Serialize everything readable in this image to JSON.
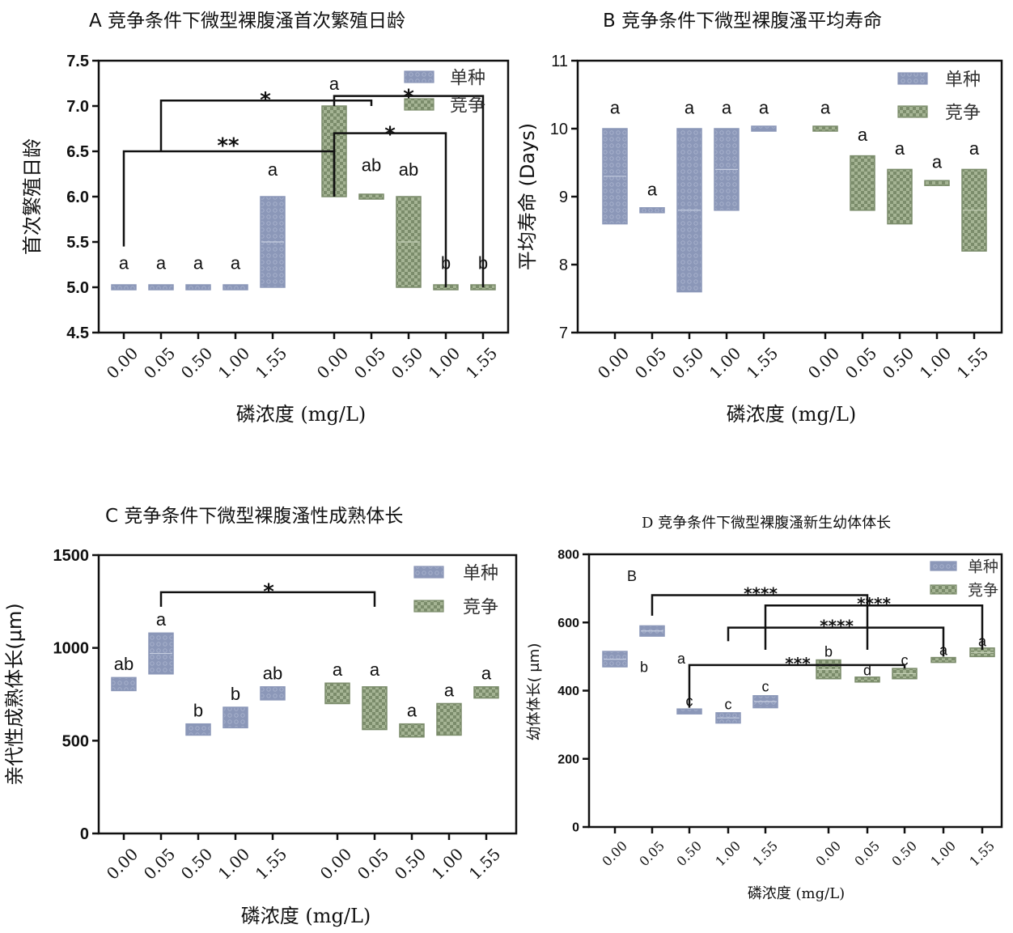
{
  "colors": {
    "mono_fill": "#8b97b8",
    "mono_pattern": "#a7b1cc",
    "comp_fill": "#7b8c6b",
    "comp_pattern": "#a5b494",
    "axis": "#111111"
  },
  "legend": {
    "mono": "单种",
    "comp": "竞争"
  },
  "chart_data": [
    {
      "type": "bar",
      "panel": "A",
      "title": "A 竞争条件下微型裸腹溞首次繁殖日龄",
      "xlabel": "磷浓度 (mg/L)",
      "ylabel": "首次繁殖日龄",
      "categories": [
        "0.00",
        "0.05",
        "0.50",
        "1.00",
        "1.55",
        "0.00",
        "0.05",
        "0.50",
        "1.00",
        "1.55"
      ],
      "ylim": [
        4.5,
        7.5
      ],
      "yticks": [
        "4.5",
        "5.0",
        "5.5",
        "6.0",
        "6.5",
        "7.0",
        "7.5"
      ],
      "series": [
        {
          "name": "单种",
          "ranges": [
            [
              5.0,
              5.0
            ],
            [
              5.0,
              5.0
            ],
            [
              5.0,
              5.0
            ],
            [
              5.0,
              5.0
            ],
            [
              5.0,
              6.0
            ],
            null,
            null,
            null,
            null,
            null
          ],
          "mean": [
            null,
            null,
            null,
            null,
            5.5,
            null,
            null,
            null,
            null,
            null
          ],
          "letters": [
            "a",
            "a",
            "a",
            "a",
            "a",
            "",
            "",
            "",
            "",
            ""
          ]
        },
        {
          "name": "竞争",
          "ranges": [
            null,
            null,
            null,
            null,
            null,
            [
              6.0,
              7.0
            ],
            [
              6.0,
              6.0
            ],
            [
              5.0,
              6.0
            ],
            [
              5.0,
              5.0
            ],
            [
              5.0,
              5.0
            ]
          ],
          "mean": [
            null,
            null,
            null,
            null,
            null,
            null,
            null,
            5.5,
            null,
            null
          ],
          "letters": [
            "",
            "",
            "",
            "",
            "",
            "a",
            "ab",
            "ab",
            "b",
            "b"
          ]
        }
      ],
      "letter_y": [
        5.2,
        5.2,
        5.2,
        5.2,
        6.23,
        7.18,
        6.28,
        6.23,
        5.2,
        5.2
      ],
      "brackets": [
        {
          "from": 0,
          "to": 5,
          "y": 6.5,
          "label": "**"
        },
        {
          "from": 1,
          "to": 6,
          "y": 7.06,
          "label": "*"
        },
        {
          "from": 5,
          "to": 8,
          "y": 6.7,
          "label": "*"
        },
        {
          "from": 5,
          "to": 9,
          "y": 7.11,
          "label": "*"
        }
      ]
    },
    {
      "type": "bar",
      "panel": "B",
      "title": "B 竞争条件下微型裸腹溞平均寿命",
      "xlabel": "磷浓度 (mg/L)",
      "ylabel": "平均寿命 (Days)",
      "categories": [
        "0.00",
        "0.05",
        "0.50",
        "1.00",
        "1.55",
        "0.00",
        "0.05",
        "0.50",
        "1.00",
        "1.55"
      ],
      "ylim": [
        7,
        11
      ],
      "yticks": [
        "7",
        "8",
        "9",
        "10",
        "11"
      ],
      "series": [
        {
          "name": "单种",
          "ranges": [
            [
              8.6,
              10.0
            ],
            [
              8.8,
              8.8
            ],
            [
              7.6,
              10.0
            ],
            [
              8.8,
              10.0
            ],
            [
              10.0,
              10.0
            ],
            null,
            null,
            null,
            null,
            null
          ],
          "mean": [
            9.3,
            null,
            8.8,
            9.4,
            null,
            null,
            null,
            null,
            null,
            null
          ],
          "letters": [
            "a",
            "a",
            "a",
            "a",
            "a",
            "",
            "",
            "",
            "",
            ""
          ]
        },
        {
          "name": "竞争",
          "ranges": [
            null,
            null,
            null,
            null,
            null,
            [
              10.0,
              10.0
            ],
            [
              8.8,
              9.6
            ],
            [
              8.6,
              9.4
            ],
            [
              9.2,
              9.2
            ],
            [
              8.2,
              9.4
            ]
          ],
          "mean": [
            null,
            null,
            null,
            null,
            null,
            null,
            null,
            null,
            null,
            8.8
          ],
          "letters": [
            "",
            "",
            "",
            "",
            "",
            "a",
            "a",
            "a",
            "a",
            "a"
          ]
        }
      ],
      "letter_y": [
        10.22,
        9.02,
        10.22,
        10.22,
        10.22,
        10.22,
        9.82,
        9.62,
        9.42,
        9.62
      ],
      "brackets": []
    },
    {
      "type": "bar",
      "panel": "C",
      "title": "C 竞争条件下微型裸腹溞性成熟体长",
      "xlabel": "磷浓度 (mg/L)",
      "ylabel": "亲代性成熟体长(μm)",
      "categories": [
        "0.00",
        "0.05",
        "0.50",
        "1.00",
        "1.55",
        "0.00",
        "0.05",
        "0.50",
        "1.00",
        "1.55"
      ],
      "ylim": [
        0,
        1500
      ],
      "yticks": [
        "0",
        "500",
        "1000",
        "1500"
      ],
      "series": [
        {
          "name": "单种",
          "ranges": [
            [
              770,
              840
            ],
            [
              860,
              1080
            ],
            [
              530,
              590
            ],
            [
              570,
              680
            ],
            [
              720,
              790
            ],
            null,
            null,
            null,
            null,
            null
          ],
          "mean": [
            null,
            970,
            null,
            null,
            null,
            null,
            null,
            null,
            null,
            null
          ],
          "letters": [
            "ab",
            "a",
            "b",
            "b",
            "ab",
            "",
            "",
            "",
            "",
            ""
          ]
        },
        {
          "name": "竞争",
          "ranges": [
            null,
            null,
            null,
            null,
            null,
            [
              700,
              810
            ],
            [
              560,
              790
            ],
            [
              520,
              590
            ],
            [
              530,
              700
            ],
            [
              730,
              790
            ]
          ],
          "mean": [
            null,
            null,
            null,
            null,
            null,
            null,
            null,
            null,
            null,
            null
          ],
          "letters": [
            "",
            "",
            "",
            "",
            "",
            "a",
            "a",
            "a",
            "a",
            "a"
          ]
        }
      ],
      "letter_y": [
        880,
        1120,
        630,
        720,
        830,
        850,
        850,
        630,
        740,
        830
      ],
      "brackets": [
        {
          "from": 1,
          "to": 6,
          "y": 1300,
          "label": "*"
        }
      ]
    },
    {
      "type": "bar",
      "panel": "D",
      "title": "D 竞争条件下微型裸腹溞新生幼体体长",
      "xlabel": "磷浓度 (mg/L)",
      "ylabel": "幼体体长( μm)",
      "categories": [
        "0.00",
        "0.05",
        "0.50",
        "1.00",
        "1.55",
        "0.00",
        "0.05",
        "0.50",
        "1.00",
        "1.55"
      ],
      "ylim": [
        0,
        800
      ],
      "yticks": [
        "0",
        "200",
        "400",
        "600",
        "800"
      ],
      "corner_label": "B",
      "series": [
        {
          "name": "单种",
          "ranges": [
            [
              470,
              515
            ],
            [
              560,
              590
            ],
            [
              333,
              345
            ],
            [
              305,
              335
            ],
            [
              350,
              385
            ],
            null,
            null,
            null,
            null,
            null
          ],
          "mean": [
            492,
            575,
            null,
            320,
            368,
            null,
            null,
            null,
            null,
            null
          ],
          "letters": [
            "",
            "",
            "c",
            "c",
            "c",
            "",
            "",
            "",
            "",
            ""
          ]
        },
        {
          "name": "竞争",
          "ranges": [
            null,
            null,
            null,
            null,
            null,
            [
              435,
              490
            ],
            [
              428,
              437
            ],
            [
              435,
              465
            ],
            [
              485,
              495
            ],
            [
              500,
              525
            ]
          ],
          "mean": [
            null,
            null,
            null,
            null,
            null,
            462,
            null,
            450,
            null,
            512
          ],
          "letters": [
            "",
            "",
            "",
            "",
            "",
            "b",
            "d",
            "c",
            "a",
            "a"
          ]
        }
      ],
      "letter_y": [
        0,
        0,
        355,
        345,
        398,
        500,
        445,
        475,
        505,
        530
      ],
      "extra_letters": [
        {
          "text": "b",
          "at": 1,
          "y": 455
        },
        {
          "text": "a",
          "at": 2,
          "y": 480
        }
      ],
      "brackets": [
        {
          "from": 1,
          "to": 6,
          "y": 680,
          "label": "****"
        },
        {
          "from": 4,
          "to": 9,
          "y": 650,
          "label": "****"
        },
        {
          "from": 3,
          "to": 8,
          "y": 585,
          "label": "****"
        },
        {
          "from": 2,
          "to": 7,
          "y": 475,
          "label": "***"
        }
      ]
    }
  ]
}
